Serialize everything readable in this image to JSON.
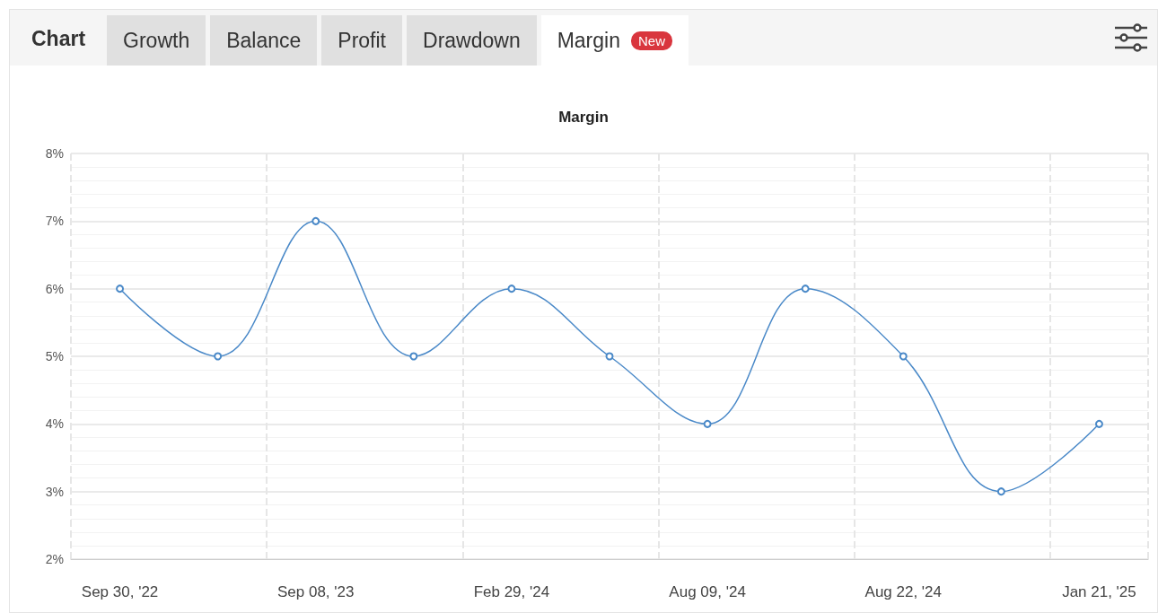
{
  "chart_data": {
    "type": "line",
    "title": "Margin",
    "categories": [
      "Sep 30, '22",
      null,
      "Sep 08, '23",
      null,
      "Feb 29, '24",
      null,
      "Aug 09, '24",
      null,
      "Aug 22, '24",
      null,
      "Jan 21, '25"
    ],
    "series": [
      {
        "color": "#4a89c8",
        "values": [
          6,
          5,
          7,
          5,
          6,
          5,
          4,
          6,
          5,
          3,
          4
        ]
      }
    ],
    "ylim": [
      2,
      8
    ],
    "yticks": [
      {
        "value": 2,
        "label": "2%"
      },
      {
        "value": 3,
        "label": "3%"
      },
      {
        "value": 4,
        "label": "4%"
      },
      {
        "value": 5,
        "label": "5%"
      },
      {
        "value": 6,
        "label": "6%"
      },
      {
        "value": 7,
        "label": "7%"
      },
      {
        "value": 8,
        "label": "8%"
      }
    ],
    "grid": true,
    "marker": "circle",
    "line_style": "solid",
    "annotations": [
      "Chart",
      "Growth",
      "Balance",
      "Profit",
      "Drawdown",
      "Margin",
      "New"
    ]
  }
}
